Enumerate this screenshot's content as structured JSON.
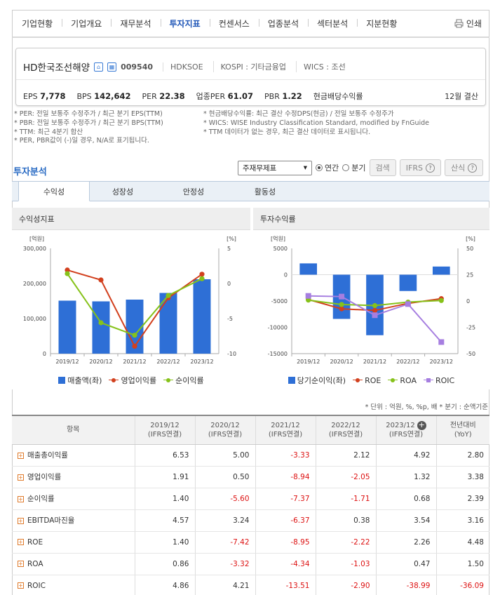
{
  "nav": {
    "items": [
      "기업현황",
      "기업개요",
      "재무분석",
      "투자지표",
      "컨센서스",
      "업종분석",
      "섹터분석",
      "지분현황"
    ],
    "active_index": 3,
    "print_label": "인쇄"
  },
  "company": {
    "name": "HD한국조선해양",
    "code": "009540",
    "ticker": "HDKSOE",
    "market": "KOSPI : 기타금융업",
    "wics": "WICS : 조선",
    "stats": [
      {
        "label": "EPS",
        "value": "7,778"
      },
      {
        "label": "BPS",
        "value": "142,642"
      },
      {
        "label": "PER",
        "value": "22.38"
      },
      {
        "label": "업종PER",
        "value": "61.07"
      },
      {
        "label": "PBR",
        "value": "1.22"
      },
      {
        "label": "현금배당수익률",
        "value": ""
      }
    ],
    "settle": "12월 결산"
  },
  "notes_left": [
    "* PER: 전일 보통주 수정주가 / 최근 분기 EPS(TTM)",
    "* PBR: 전일 보통주 수정주가 / 최근 분기 BPS(TTM)",
    "* TTM: 최근 4분기 합산",
    "* PER, PBR값이 (-)일 경우, N/A로 표기됩니다."
  ],
  "notes_right": [
    "* 현금배당수익률: 최근 결산 수정DPS(현금) / 전일 보통주 수정주가",
    "* WICS: WISE Industry Classification Standard, modified by FnGuide",
    "* TTM 데이터가 없는 경우, 최근 결산 데이터로 표시됩니다."
  ],
  "section": {
    "title": "투자분석",
    "select_value": "주재무제표",
    "radio_annual": "연간",
    "radio_quarter": "분기",
    "search_btn": "검색",
    "ifrs_btn": "IFRS",
    "formula_btn": "산식"
  },
  "tabs": [
    "수익성",
    "성장성",
    "안정성",
    "활동성"
  ],
  "chart_data": [
    {
      "type": "bar+line",
      "title": "수익성지표",
      "categories": [
        "2019/12",
        "2020/12",
        "2021/12",
        "2022/12",
        "2023/12"
      ],
      "left_axis_label": "[억원]",
      "right_axis_label": "[%]",
      "left_ticks": [
        "300,000",
        "200,000",
        "100,000",
        "0"
      ],
      "right_ticks": [
        "5",
        "0",
        "-5",
        "-10"
      ],
      "left_range": [
        0,
        300000
      ],
      "right_range": [
        -10,
        5
      ],
      "series": [
        {
          "name": "매출액(좌)",
          "type": "bar",
          "axis": "left",
          "color": "#2e6fd6",
          "values": [
            151000,
            149000,
            154000,
            173000,
            212000
          ]
        },
        {
          "name": "영업이익률",
          "type": "line",
          "axis": "right",
          "color": "#d2401e",
          "values": [
            1.91,
            0.5,
            -8.94,
            -2.05,
            1.32
          ]
        },
        {
          "name": "순이익률",
          "type": "line",
          "axis": "right",
          "color": "#86c21a",
          "values": [
            1.4,
            -5.6,
            -7.37,
            -1.71,
            0.68
          ]
        }
      ]
    },
    {
      "type": "bar+line",
      "title": "투자수익률",
      "categories": [
        "2019/12",
        "2020/12",
        "2021/12",
        "2022/12",
        "2023/12"
      ],
      "left_axis_label": "[억원]",
      "right_axis_label": "[%]",
      "left_ticks": [
        "5000",
        "0",
        "-5000",
        "-10000",
        "-15000"
      ],
      "right_ticks": [
        "50",
        "25",
        "0",
        "-25",
        "-50"
      ],
      "left_range": [
        -15000,
        5000
      ],
      "right_range": [
        -50,
        50
      ],
      "series": [
        {
          "name": "당기순이익(좌)",
          "type": "bar",
          "axis": "left",
          "color": "#2e6fd6",
          "values": [
            2150,
            -8400,
            -11500,
            -3100,
            1550
          ]
        },
        {
          "name": "ROE",
          "type": "line",
          "axis": "right",
          "color": "#d2401e",
          "values": [
            1.4,
            -7.42,
            -8.95,
            -2.22,
            2.26
          ]
        },
        {
          "name": "ROA",
          "type": "line",
          "axis": "right",
          "color": "#86c21a",
          "values": [
            0.86,
            -3.32,
            -4.34,
            -1.03,
            0.47
          ]
        },
        {
          "name": "ROIC",
          "type": "line",
          "axis": "right",
          "color": "#a67ee0",
          "values": [
            4.86,
            4.21,
            -13.51,
            -2.9,
            -38.99
          ]
        }
      ]
    }
  ],
  "units_note": "* 단위 : 억원, %, %p, 배    * 분기 : 순액기준",
  "table": {
    "header_item": "항목",
    "columns": [
      {
        "year": "2019/12",
        "basis": "(IFRS연결)"
      },
      {
        "year": "2020/12",
        "basis": "(IFRS연결)"
      },
      {
        "year": "2021/12",
        "basis": "(IFRS연결)"
      },
      {
        "year": "2022/12",
        "basis": "(IFRS연결)"
      },
      {
        "year": "2023/12",
        "basis": "(IFRS연결)"
      },
      {
        "year": "전년대비",
        "basis": "(YoY)"
      }
    ],
    "rows": [
      {
        "label": "매출총이익률",
        "values": [
          "6.53",
          "5.00",
          "-3.33",
          "2.12",
          "4.92",
          "2.80"
        ]
      },
      {
        "label": "영업이익률",
        "values": [
          "1.91",
          "0.50",
          "-8.94",
          "-2.05",
          "1.32",
          "3.38"
        ]
      },
      {
        "label": "순이익률",
        "values": [
          "1.40",
          "-5.60",
          "-7.37",
          "-1.71",
          "0.68",
          "2.39"
        ]
      },
      {
        "label": "EBITDA마진율",
        "values": [
          "4.57",
          "3.24",
          "-6.37",
          "0.38",
          "3.54",
          "3.16"
        ]
      },
      {
        "label": "ROE",
        "values": [
          "1.40",
          "-7.42",
          "-8.95",
          "-2.22",
          "2.26",
          "4.48"
        ]
      },
      {
        "label": "ROA",
        "values": [
          "0.86",
          "-3.32",
          "-4.34",
          "-1.03",
          "0.47",
          "1.50"
        ]
      },
      {
        "label": "ROIC",
        "values": [
          "4.86",
          "4.21",
          "-13.51",
          "-2.90",
          "-38.99",
          "-36.09"
        ]
      }
    ]
  }
}
